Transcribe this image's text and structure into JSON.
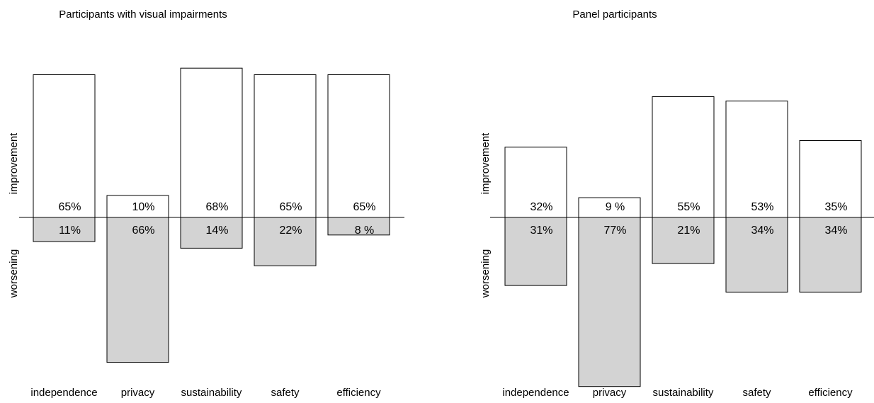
{
  "colors": {
    "improvement_fill": "#ffffff",
    "worsening_fill": "#d3d3d3",
    "stroke": "#000000"
  },
  "chart_data": [
    {
      "type": "bar",
      "title": "Participants with visual impairments",
      "categories": [
        "independence",
        "privacy",
        "sustainability",
        "safety",
        "efficiency"
      ],
      "ylabel_positive": "improvement",
      "ylabel_negative": "worsening",
      "series": [
        {
          "name": "improvement",
          "values": [
            65,
            10,
            68,
            65,
            65
          ],
          "labels": [
            "65%",
            "10%",
            "68%",
            "65%",
            "65%"
          ]
        },
        {
          "name": "worsening",
          "values": [
            11,
            66,
            14,
            22,
            8
          ],
          "labels": [
            "11%",
            "66%",
            "14%",
            "22%",
            "8 %"
          ]
        }
      ],
      "ylim": [
        -70,
        70
      ],
      "grid": false,
      "legend": "none"
    },
    {
      "type": "bar",
      "title": "Panel participants",
      "categories": [
        "independence",
        "privacy",
        "sustainability",
        "safety",
        "efficiency"
      ],
      "ylabel_positive": "improvement",
      "ylabel_negative": "worsening",
      "series": [
        {
          "name": "improvement",
          "values": [
            32,
            9,
            55,
            53,
            35
          ],
          "labels": [
            "32%",
            "9 %",
            "55%",
            "53%",
            "35%"
          ]
        },
        {
          "name": "worsening",
          "values": [
            31,
            77,
            21,
            34,
            34
          ],
          "labels": [
            "31%",
            "77%",
            "21%",
            "34%",
            "34%"
          ]
        }
      ],
      "ylim": [
        -80,
        80
      ],
      "grid": false,
      "legend": "none"
    }
  ]
}
